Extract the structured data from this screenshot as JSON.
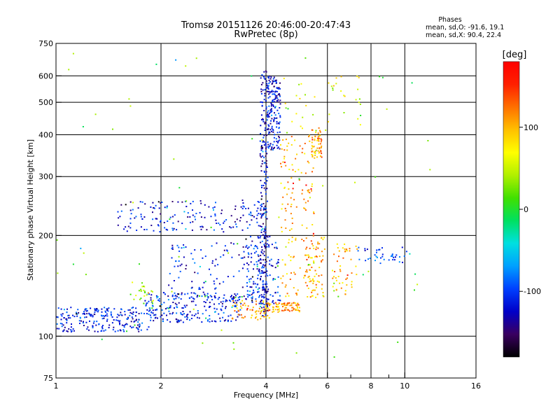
{
  "chart_data": {
    "type": "scatter",
    "title": "Tromsø 20151126 20:46:00-20:47:43",
    "subtitle": "RwPretec (8p)",
    "xlabel": "Frequency [MHz]",
    "ylabel": "Stationary phase Virtual Height [km]",
    "x_scale": "log",
    "y_scale": "log",
    "xlim": [
      1,
      16
    ],
    "ylim": [
      75,
      750
    ],
    "x_ticks": [
      1,
      2,
      4,
      6,
      8,
      10,
      16
    ],
    "x_tick_labels": [
      "1",
      "2",
      "4",
      "6",
      "8",
      "10",
      "16"
    ],
    "x_minor_ticks": [
      3,
      5,
      7,
      9
    ],
    "x_gridlines": [
      1,
      2,
      4,
      6,
      8,
      10,
      16
    ],
    "y_ticks": [
      75,
      100,
      200,
      300,
      400,
      500,
      600,
      750
    ],
    "y_tick_labels": [
      "75",
      "100",
      "200",
      "300",
      "400",
      "500",
      "600",
      "750"
    ],
    "y_gridlines": [
      100,
      200,
      300,
      400,
      500,
      600
    ],
    "grid": true,
    "legend": {
      "heading": "Phases",
      "lines": [
        "mean, sd,O: -91.6, 19.1",
        "mean, sd,X:  90.4, 22.4"
      ],
      "placement": "top-right"
    },
    "colorbar": {
      "title": "[deg]",
      "range": [
        -180,
        180
      ],
      "ticks": [
        100,
        0,
        -100
      ],
      "tick_labels": [
        "100",
        "0",
        "-100"
      ],
      "palette": [
        "#000000",
        "#3a0060",
        "#0000c8",
        "#0040ff",
        "#00a0ff",
        "#00e0e0",
        "#00e060",
        "#40e000",
        "#b0f000",
        "#ffff00",
        "#ffc000",
        "#ff7000",
        "#ff2000",
        "#ff0000"
      ]
    },
    "clusters": [
      {
        "f0": 1.0,
        "f1": 1.9,
        "h0": 103,
        "h1": 122,
        "phase": -110,
        "n": 240
      },
      {
        "f0": 1.8,
        "f1": 3.4,
        "h0": 110,
        "h1": 135,
        "phase": -110,
        "n": 220
      },
      {
        "f0": 3.2,
        "f1": 4.1,
        "h0": 112,
        "h1": 128,
        "phase": 105,
        "n": 70
      },
      {
        "f0": 2.1,
        "f1": 3.9,
        "h0": 125,
        "h1": 190,
        "phase": -115,
        "n": 140
      },
      {
        "f0": 1.6,
        "f1": 1.9,
        "h0": 125,
        "h1": 145,
        "phase": 40,
        "n": 25
      },
      {
        "f0": 1.5,
        "f1": 3.9,
        "h0": 205,
        "h1": 255,
        "phase": -115,
        "n": 170
      },
      {
        "f0": 3.85,
        "f1": 4.05,
        "h0": 115,
        "h1": 620,
        "phase": -120,
        "n": 240
      },
      {
        "f0": 4.05,
        "f1": 4.4,
        "h0": 360,
        "h1": 600,
        "phase": -115,
        "n": 160
      },
      {
        "f0": 3.5,
        "f1": 4.4,
        "h0": 125,
        "h1": 200,
        "phase": -110,
        "n": 110
      },
      {
        "f0": 4.0,
        "f1": 5.0,
        "h0": 118,
        "h1": 126,
        "phase": 110,
        "n": 80
      },
      {
        "f0": 4.4,
        "f1": 5.5,
        "h0": 130,
        "h1": 400,
        "phase": 100,
        "n": 150
      },
      {
        "f0": 5.4,
        "f1": 5.8,
        "h0": 340,
        "h1": 420,
        "phase": 110,
        "n": 60
      },
      {
        "f0": 5.2,
        "f1": 5.9,
        "h0": 130,
        "h1": 200,
        "phase": 105,
        "n": 70
      },
      {
        "f0": 6.2,
        "f1": 7.3,
        "h0": 130,
        "h1": 190,
        "phase": 100,
        "n": 50
      },
      {
        "f0": 7.3,
        "f1": 10.5,
        "h0": 165,
        "h1": 185,
        "phase": -100,
        "n": 40
      },
      {
        "f0": 4.5,
        "f1": 7.5,
        "h0": 400,
        "h1": 640,
        "phase": 60,
        "n": 40
      },
      {
        "f0": 1.0,
        "f1": 12.0,
        "h0": 85,
        "h1": 700,
        "phase": 20,
        "n": 70
      }
    ]
  }
}
